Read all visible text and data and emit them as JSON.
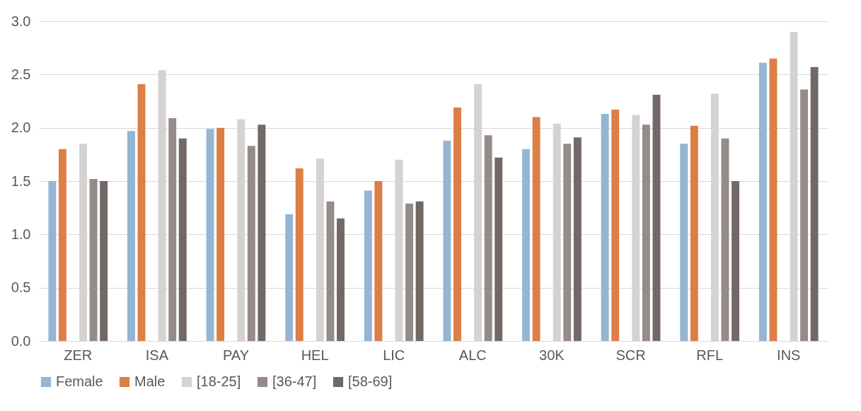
{
  "chart_data": {
    "type": "bar",
    "categories": [
      "ZER",
      "ISA",
      "PAY",
      "HEL",
      "LIC",
      "ALC",
      "30K",
      "SCR",
      "RFL",
      "INS"
    ],
    "series": [
      {
        "name": "Female",
        "color": "#95b5d3",
        "values": [
          1.5,
          1.97,
          1.99,
          1.19,
          1.41,
          1.88,
          1.8,
          2.13,
          1.85,
          2.61
        ]
      },
      {
        "name": "Male",
        "color": "#dd7e45",
        "values": [
          1.8,
          2.41,
          2.0,
          1.62,
          1.5,
          2.19,
          2.1,
          2.17,
          2.02,
          2.65
        ]
      },
      {
        "values": [
          null,
          null,
          null,
          null,
          null,
          null,
          null,
          null,
          null,
          null
        ]
      },
      {
        "name": "[18-25]",
        "color": "#d6d2d1",
        "values": [
          1.85,
          2.54,
          2.08,
          1.71,
          1.7,
          2.41,
          2.04,
          2.12,
          2.32,
          2.9
        ]
      },
      {
        "name": "[36-47]",
        "color": "#958b89",
        "values": [
          1.52,
          2.09,
          1.83,
          1.31,
          1.29,
          1.93,
          1.85,
          2.03,
          1.9,
          2.36
        ]
      },
      {
        "name": "[58-69]",
        "color": "#726866",
        "values": [
          1.5,
          1.9,
          2.03,
          1.15,
          1.31,
          1.72,
          1.91,
          2.31,
          1.5,
          2.57
        ]
      }
    ],
    "ylim": [
      0,
      3
    ],
    "yticks": [
      {
        "value": 0,
        "label": "0.0"
      },
      {
        "value": 0.5,
        "label": "0.5"
      },
      {
        "value": 1,
        "label": "1.0"
      },
      {
        "value": 1.5,
        "label": "1.5"
      },
      {
        "value": 2,
        "label": "2.0"
      },
      {
        "value": 2.5,
        "label": "2.5"
      },
      {
        "value": 3,
        "label": "3.0"
      }
    ],
    "grid": "y",
    "legend": "bottom"
  }
}
